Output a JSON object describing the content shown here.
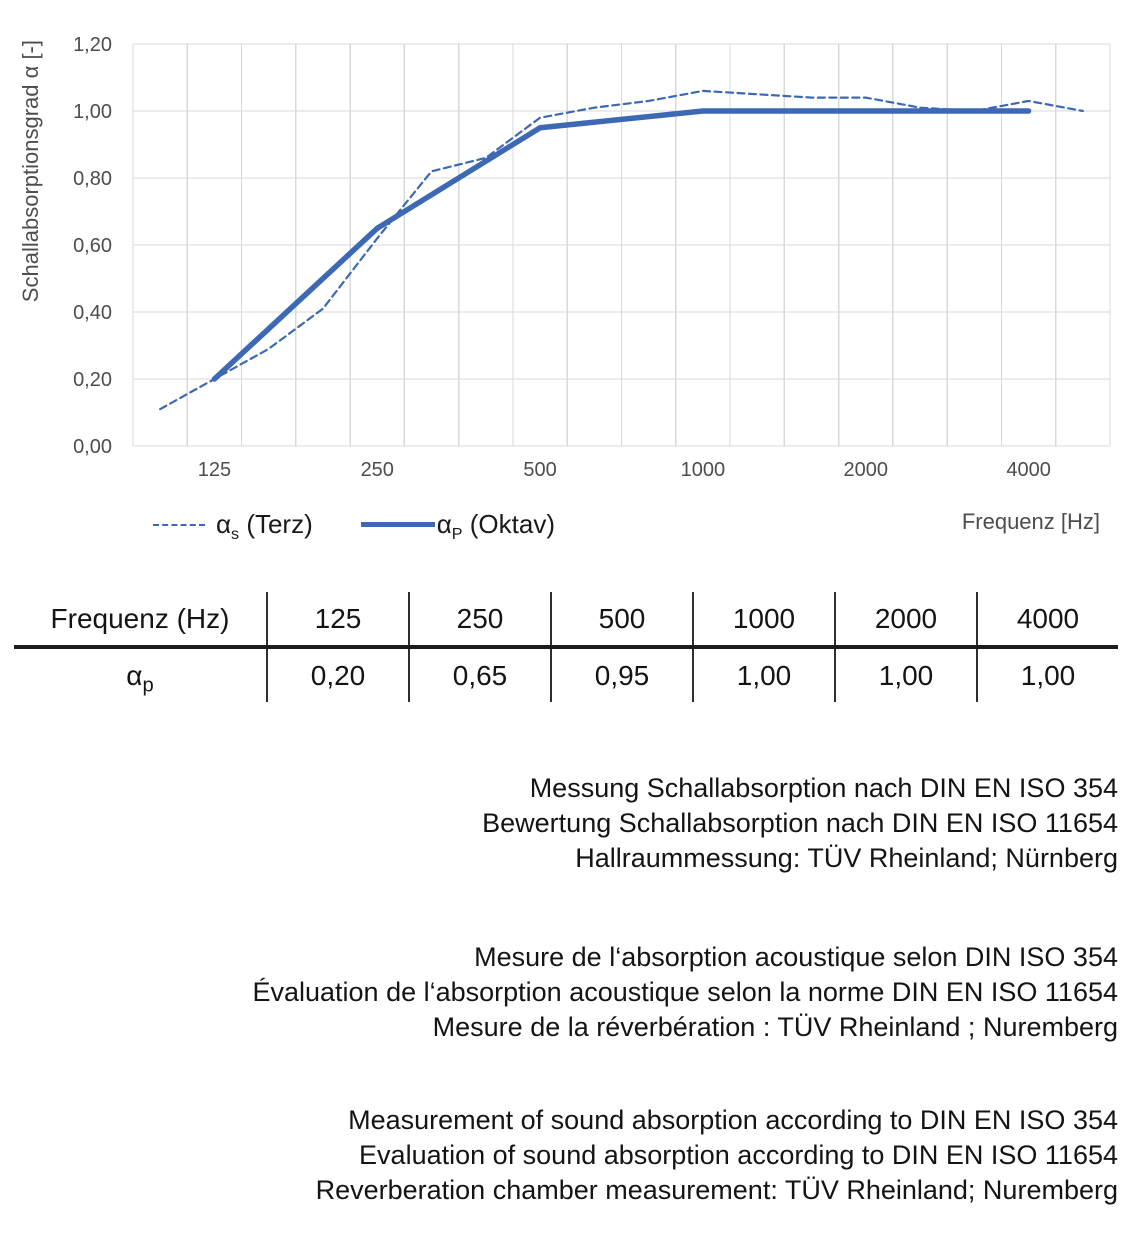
{
  "chart": {
    "y_axis_title": "Schallabsorptionsgrad α [-]",
    "x_axis_title": "Frequenz [Hz]",
    "legend": {
      "terz": {
        "alpha": "α",
        "sub": "s",
        "rest": " (Terz)"
      },
      "oktav": {
        "alpha": "α",
        "sub": "P",
        "rest": " (Oktav)"
      }
    }
  },
  "chart_data": {
    "type": "line",
    "title": "",
    "xlabel": "Frequenz [Hz]",
    "ylabel": "Schallabsorptionsgrad α [-]",
    "x_scale": "logarithmic-third-octave-categories",
    "grid": true,
    "legend_position": "bottom-left",
    "ylim": [
      0,
      1.2
    ],
    "y_tick_labels": [
      "0,00",
      "0,20",
      "0,40",
      "0,60",
      "0,80",
      "1,00",
      "1,20"
    ],
    "x_categories": [
      "100",
      "125",
      "160",
      "200",
      "250",
      "315",
      "400",
      "500",
      "630",
      "800",
      "1000",
      "1250",
      "1600",
      "2000",
      "2500",
      "3150",
      "4000",
      "5000"
    ],
    "x_axis_tick_labels": [
      "125",
      "250",
      "500",
      "1000",
      "2000",
      "4000"
    ],
    "series": [
      {
        "name": "αs (Terz)",
        "line_style": "dashed",
        "color": "#3c68b4",
        "x": [
          "100",
          "125",
          "160",
          "200",
          "250",
          "315",
          "400",
          "500",
          "630",
          "800",
          "1000",
          "1250",
          "1600",
          "2000",
          "2500",
          "3150",
          "4000",
          "5000"
        ],
        "values": [
          0.11,
          0.2,
          0.29,
          0.41,
          0.62,
          0.82,
          0.86,
          0.98,
          1.01,
          1.03,
          1.06,
          1.05,
          1.04,
          1.04,
          1.01,
          1.0,
          1.03,
          1.0
        ]
      },
      {
        "name": "αP (Oktav)",
        "line_style": "solid",
        "color": "#3c68b4",
        "x": [
          "125",
          "250",
          "500",
          "1000",
          "2000",
          "4000"
        ],
        "values": [
          0.2,
          0.65,
          0.95,
          1.0,
          1.0,
          1.0
        ]
      }
    ]
  },
  "table": {
    "header": [
      "Frequenz (Hz)",
      "125",
      "250",
      "500",
      "1000",
      "2000",
      "4000"
    ],
    "row_label": {
      "alpha": "α",
      "sub": "p"
    },
    "values": [
      "0,20",
      "0,65",
      "0,95",
      "1,00",
      "1,00",
      "1,00"
    ]
  },
  "notes": {
    "german": [
      "Messung Schallabsorption nach DIN EN ISO 354",
      "Bewertung Schallabsorption nach DIN EN ISO 11654",
      "Hallraummessung: TÜV Rheinland; Nürnberg"
    ],
    "french": [
      "Mesure de l‘absorption acoustique selon DIN ISO 354",
      "Évaluation de l‘absorption acoustique selon la norme DIN EN ISO 11654",
      "Mesure de la réverbération : TÜV Rheinland ; Nuremberg"
    ],
    "english": [
      "Measurement of sound absorption according to DIN EN ISO 354",
      "Evaluation of sound absorption according to DIN EN ISO 11654",
      "Reverberation chamber measurement: TÜV Rheinland; Nuremberg"
    ]
  },
  "colors": {
    "line": "#3c68b4",
    "grid": "#d9d9d9",
    "axis_text": "#4d4d4d"
  }
}
